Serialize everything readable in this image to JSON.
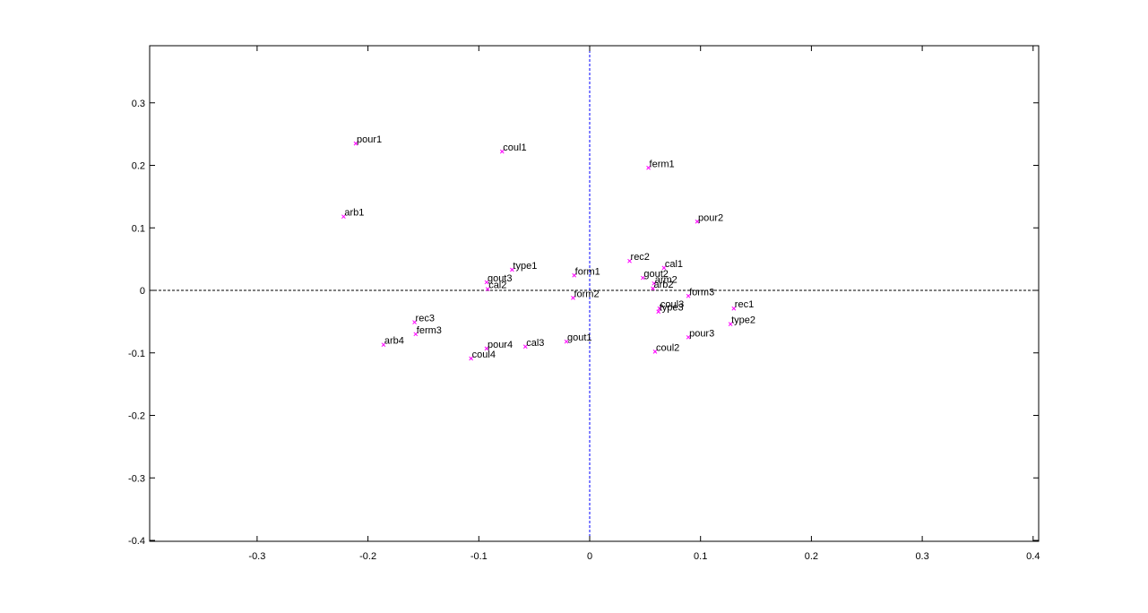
{
  "chart_data": {
    "type": "scatter",
    "title": "",
    "xlabel": "",
    "ylabel": "",
    "xlim": [
      -0.4,
      0.4
    ],
    "ylim": [
      -0.4,
      0.4
    ],
    "x_ticks": [
      "-0.3",
      "-0.2",
      "-0.1",
      "0",
      "0.1",
      "0.2",
      "0.3",
      "0.4"
    ],
    "y_ticks": [
      "-0.4",
      "-0.3",
      "-0.2",
      "-0.1",
      "0",
      "0.1",
      "0.2",
      "0.3"
    ],
    "grid": false,
    "marker_color": "#ff00ff",
    "reference_lines": {
      "x0": "#0000ff",
      "y0": "#000000"
    },
    "points": [
      {
        "label": "pour1",
        "x": -0.211,
        "y": 0.235
      },
      {
        "label": "coul1",
        "x": -0.079,
        "y": 0.222
      },
      {
        "label": "ferm1",
        "x": 0.053,
        "y": 0.196
      },
      {
        "label": "arb1",
        "x": -0.222,
        "y": 0.118
      },
      {
        "label": "pour2",
        "x": 0.097,
        "y": 0.11
      },
      {
        "label": "rec2",
        "x": 0.036,
        "y": 0.047
      },
      {
        "label": "cal1",
        "x": 0.067,
        "y": 0.036
      },
      {
        "label": "type1",
        "x": -0.07,
        "y": 0.033
      },
      {
        "label": "form1",
        "x": -0.014,
        "y": 0.024
      },
      {
        "label": "gout2",
        "x": 0.048,
        "y": 0.02
      },
      {
        "label": "gout3",
        "x": -0.093,
        "y": 0.013
      },
      {
        "label": "arm2",
        "x": 0.058,
        "y": 0.011
      },
      {
        "label": "arb2",
        "x": 0.057,
        "y": 0.003
      },
      {
        "label": "cal2",
        "x": -0.092,
        "y": 0.002
      },
      {
        "label": "form3",
        "x": 0.089,
        "y": -0.009
      },
      {
        "label": "form2",
        "x": -0.015,
        "y": -0.012
      },
      {
        "label": "rec1",
        "x": 0.13,
        "y": -0.029
      },
      {
        "label": "coul3",
        "x": 0.063,
        "y": -0.029
      },
      {
        "label": "type3",
        "x": 0.062,
        "y": -0.034
      },
      {
        "label": "rec3",
        "x": -0.158,
        "y": -0.051
      },
      {
        "label": "type2",
        "x": 0.127,
        "y": -0.054
      },
      {
        "label": "ferm3",
        "x": -0.157,
        "y": -0.07
      },
      {
        "label": "pour3",
        "x": 0.089,
        "y": -0.075
      },
      {
        "label": "gout1",
        "x": -0.021,
        "y": -0.082
      },
      {
        "label": "arb4",
        "x": -0.186,
        "y": -0.087
      },
      {
        "label": "cal3",
        "x": -0.058,
        "y": -0.09
      },
      {
        "label": "pour4",
        "x": -0.093,
        "y": -0.093
      },
      {
        "label": "coul2",
        "x": 0.059,
        "y": -0.098
      },
      {
        "label": "coul4",
        "x": -0.107,
        "y": -0.109
      }
    ]
  }
}
